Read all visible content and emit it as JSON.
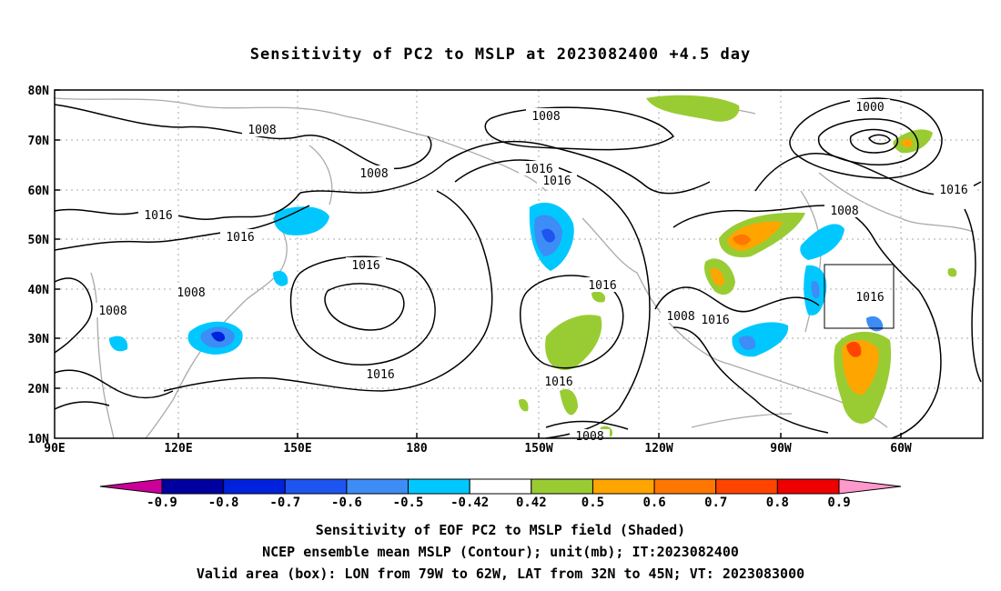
{
  "title": "Sensitivity of PC2 to MSLP at 2023082400 +4.5 day",
  "lat_labels": [
    "80N",
    "70N",
    "60N",
    "50N",
    "40N",
    "30N",
    "20N",
    "10N"
  ],
  "lon_labels": [
    "90E",
    "120E",
    "150E",
    "180",
    "150W",
    "120W",
    "90W",
    "60W"
  ],
  "contour_labels": [
    "1008",
    "1008",
    "1008",
    "1000",
    "1016",
    "1016",
    "1016",
    "1016",
    "1016",
    "1008",
    "1016",
    "1008",
    "1016",
    "1008",
    "1016",
    "1016",
    "1008",
    "1016",
    "1016",
    "1008"
  ],
  "colorbar": {
    "labels": [
      "-0.9",
      "-0.8",
      "-0.7",
      "-0.6",
      "-0.5",
      "-0.42",
      "0.42",
      "0.5",
      "0.6",
      "0.7",
      "0.8",
      "0.9"
    ],
    "colors": [
      "#cc0099",
      "#0000a0",
      "#0022dd",
      "#1e55f0",
      "#3e8cf5",
      "#00c8ff",
      "#ffffff",
      "#99cc33",
      "#ffa500",
      "#ff7700",
      "#ff4400",
      "#ee0000",
      "#ff99cc"
    ]
  },
  "valid_box": {
    "lon_from": "79W",
    "lon_to": "62W",
    "lat_from": "32N",
    "lat_to": "45N"
  },
  "captions": {
    "line1": "Sensitivity of EOF PC2 to MSLP field (Shaded)",
    "line2": "NCEP ensemble mean MSLP (Contour); unit(mb); IT:2023082400",
    "line3": "Valid area (box): LON from 79W to 62W, LAT from 32N to 45N; VT: 2023083000"
  }
}
